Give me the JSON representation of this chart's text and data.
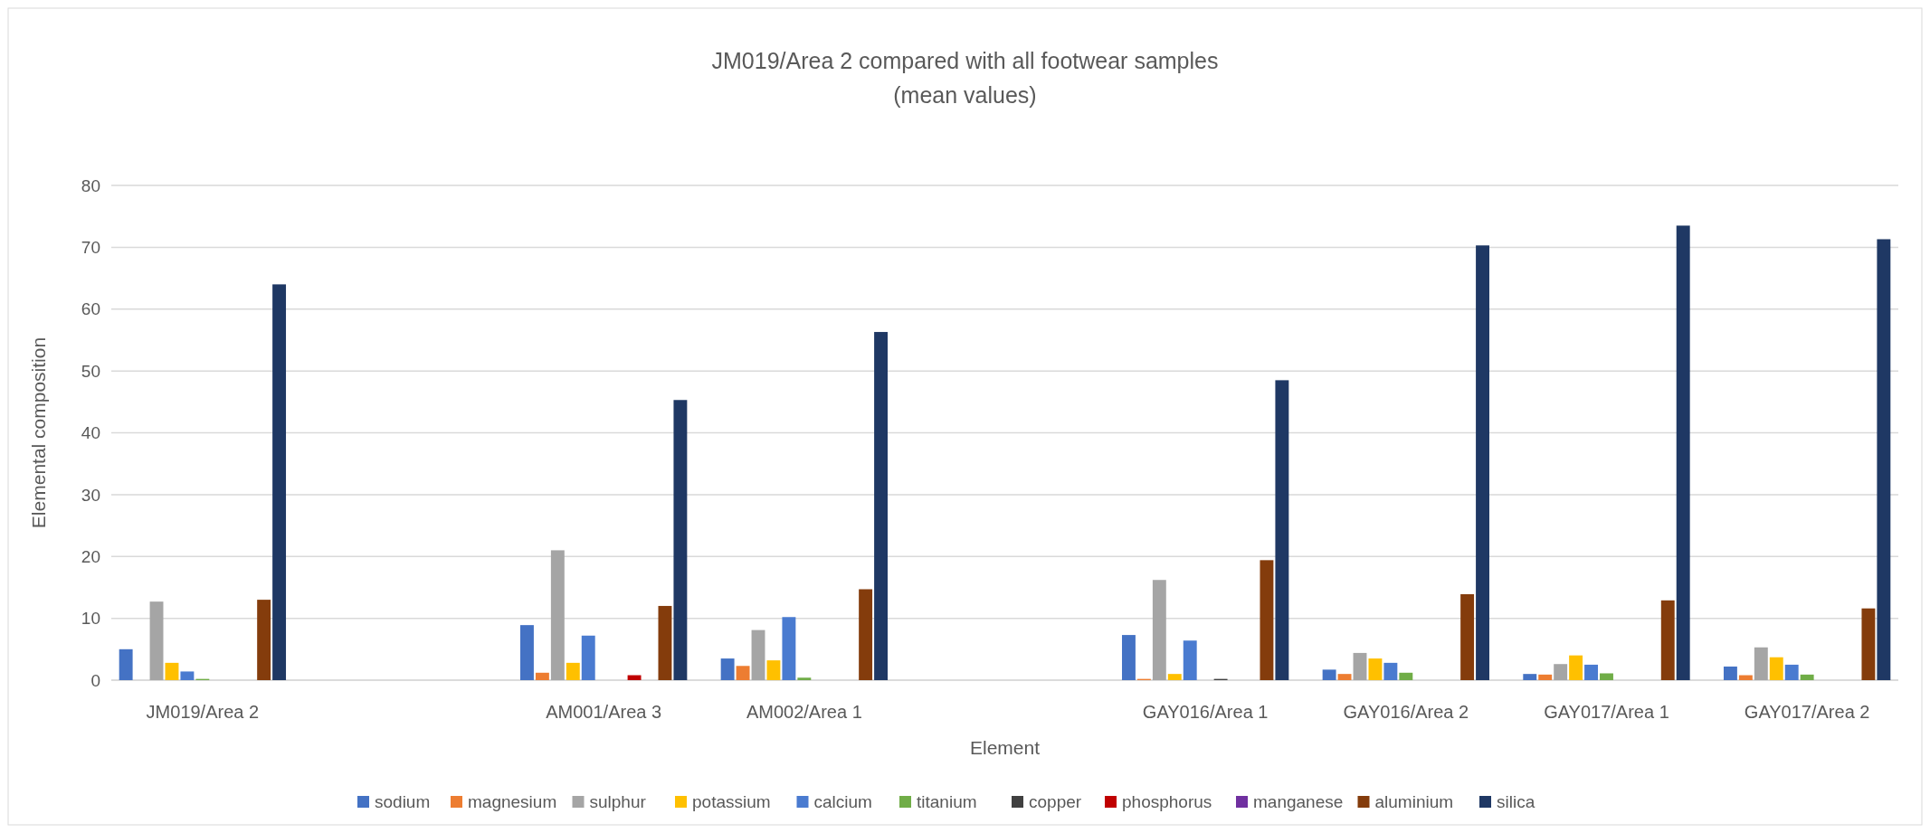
{
  "chart_data": {
    "type": "bar",
    "title": "JM019/Area 2 compared with all footwear samples",
    "subtitle": "(mean values)",
    "xlabel": "Element",
    "ylabel": "Elemental composition",
    "categories": [
      "JM019/Area 2",
      null,
      "AM001/Area 3",
      "AM002/Area 1",
      null,
      "GAY016/Area 1",
      "GAY016/Area 2",
      "GAY017/Area 1",
      "GAY017/Area 2"
    ],
    "series": [
      {
        "name": "sodium",
        "color": "#4472c4",
        "values": [
          5.0,
          null,
          8.9,
          3.5,
          null,
          7.3,
          1.7,
          1.0,
          2.2
        ]
      },
      {
        "name": "magnesium",
        "color": "#ed7d31",
        "values": [
          0,
          null,
          1.2,
          2.3,
          null,
          0.2,
          1.0,
          0.9,
          0.8
        ]
      },
      {
        "name": "sulphur",
        "color": "#a5a5a5",
        "values": [
          12.7,
          null,
          21.0,
          8.1,
          null,
          16.2,
          4.4,
          2.6,
          5.3
        ]
      },
      {
        "name": "potassium",
        "color": "#ffc000",
        "values": [
          2.8,
          null,
          2.8,
          3.2,
          null,
          1.0,
          3.5,
          4.0,
          3.7
        ]
      },
      {
        "name": "calcium",
        "color": "#4a7bd0",
        "values": [
          1.4,
          null,
          7.2,
          10.2,
          null,
          6.4,
          2.8,
          2.5,
          2.5
        ]
      },
      {
        "name": "titanium",
        "color": "#70ad47",
        "values": [
          0.2,
          null,
          0,
          0.4,
          null,
          0,
          1.2,
          1.1,
          0.9
        ]
      },
      {
        "name": "copper",
        "color": "#404040",
        "values": [
          0,
          null,
          0,
          0,
          null,
          0.2,
          0,
          0,
          0
        ]
      },
      {
        "name": "phosphorus",
        "color": "#c00000",
        "values": [
          0,
          null,
          0.8,
          0,
          null,
          0,
          0,
          0,
          0
        ]
      },
      {
        "name": "manganese",
        "color": "#7030a0",
        "values": [
          0,
          null,
          0,
          0,
          null,
          0,
          0,
          0,
          0
        ]
      },
      {
        "name": "aluminium",
        "color": "#843c0c",
        "values": [
          13.0,
          null,
          12.0,
          14.7,
          null,
          19.4,
          13.9,
          12.9,
          11.6
        ]
      },
      {
        "name": "silica",
        "color": "#1f3864",
        "values": [
          64.0,
          null,
          45.3,
          56.3,
          null,
          48.5,
          70.3,
          73.5,
          71.3
        ]
      }
    ],
    "ylim": [
      0,
      80
    ],
    "yticks": [
      0,
      10,
      20,
      30,
      40,
      50,
      60,
      70,
      80
    ],
    "grid": "y",
    "legend": "bottom"
  }
}
